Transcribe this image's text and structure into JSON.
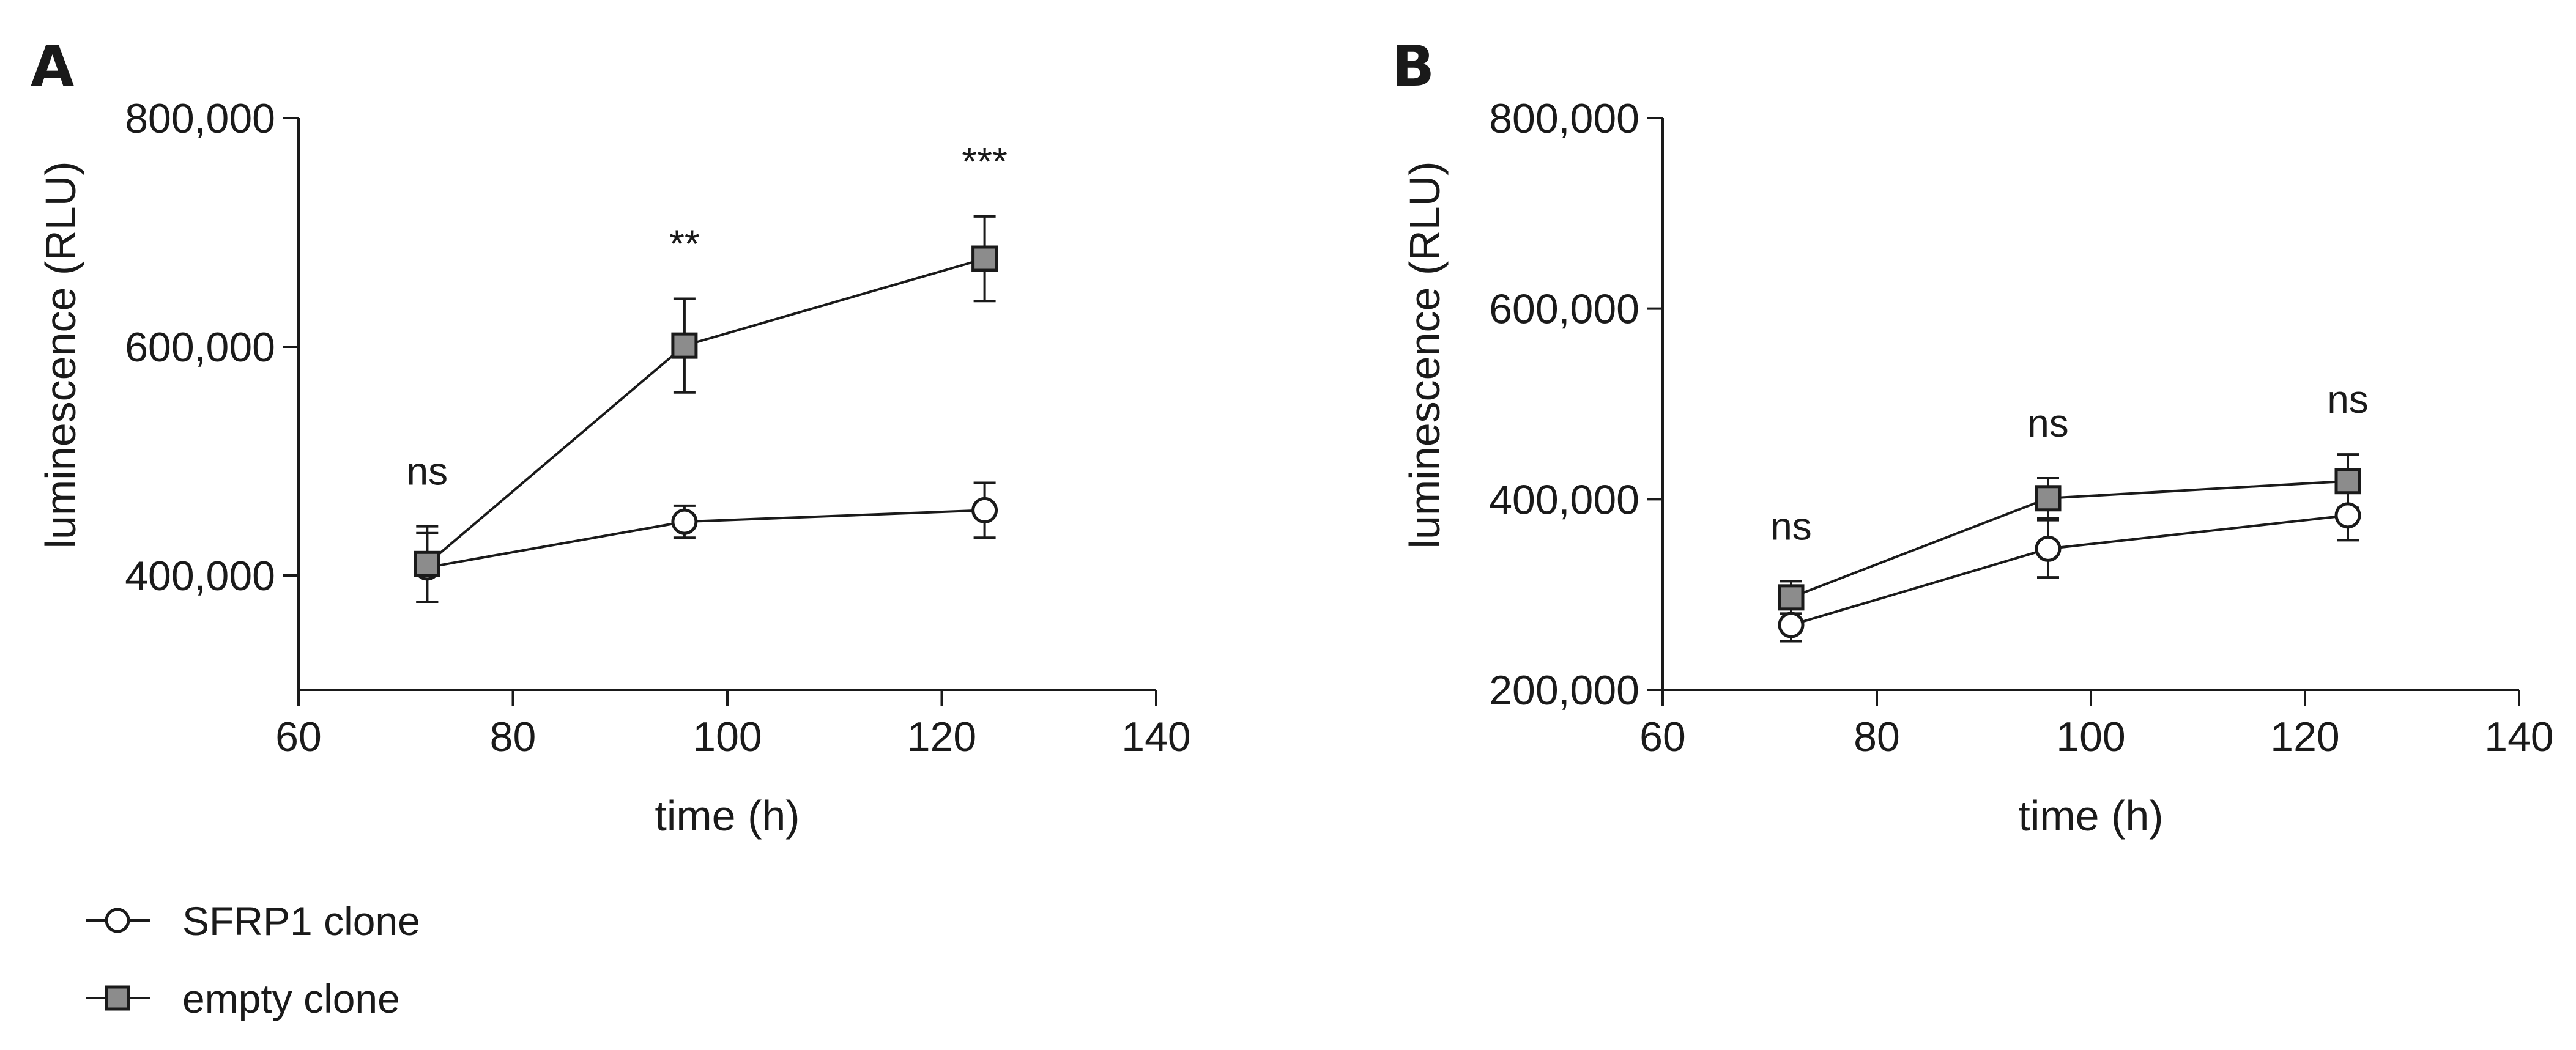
{
  "legend": {
    "items": [
      {
        "label": "SFRP1 clone",
        "marker": "circle"
      },
      {
        "label": "empty clone",
        "marker": "square"
      }
    ]
  },
  "colors": {
    "axis": "#1a1a1a",
    "sfrp1_fill": "#ffffff",
    "empty_fill": "#8c8c8c"
  },
  "chart_data": [
    {
      "panel": "A",
      "type": "line",
      "xlabel": "time (h)",
      "ylabel": "luminescence (RLU)",
      "xlim": [
        60,
        140
      ],
      "ylim": [
        300000,
        800000
      ],
      "xticks": [
        60,
        80,
        100,
        120,
        140
      ],
      "xtick_labels": [
        "60",
        "80",
        "100",
        "120",
        "140"
      ],
      "yticks": [
        400000,
        600000,
        800000
      ],
      "ytick_labels": [
        "400,000",
        "600,000",
        "800,000"
      ],
      "x": [
        72,
        96,
        124
      ],
      "series": [
        {
          "name": "SFRP1 clone",
          "marker": "circle",
          "values": [
            407000,
            447000,
            457000
          ],
          "errors": [
            30000,
            14000,
            24000
          ]
        },
        {
          "name": "empty clone",
          "marker": "square",
          "values": [
            410000,
            601000,
            677000
          ],
          "errors": [
            33000,
            41000,
            37000
          ]
        }
      ],
      "annotations": [
        {
          "x": 72,
          "text": "ns"
        },
        {
          "x": 96,
          "text": "**"
        },
        {
          "x": 124,
          "text": "***"
        }
      ]
    },
    {
      "panel": "B",
      "type": "line",
      "xlabel": "time (h)",
      "ylabel": "luminescence (RLU)",
      "xlim": [
        60,
        140
      ],
      "ylim": [
        200000,
        800000
      ],
      "xticks": [
        60,
        80,
        100,
        120,
        140
      ],
      "xtick_labels": [
        "60",
        "80",
        "100",
        "120",
        "140"
      ],
      "yticks": [
        200000,
        400000,
        600000,
        800000
      ],
      "ytick_labels": [
        "200,000",
        "400,000",
        "600,000",
        "800,000"
      ],
      "x": [
        72,
        96,
        124
      ],
      "series": [
        {
          "name": "SFRP1 clone",
          "marker": "circle",
          "values": [
            268000,
            348000,
            383000
          ],
          "errors": [
            17000,
            30000,
            26000
          ]
        },
        {
          "name": "empty clone",
          "marker": "square",
          "values": [
            297000,
            401000,
            419000
          ],
          "errors": [
            17000,
            21000,
            28000
          ]
        }
      ],
      "annotations": [
        {
          "x": 72,
          "text": "ns"
        },
        {
          "x": 96,
          "text": "ns"
        },
        {
          "x": 124,
          "text": "ns"
        }
      ]
    }
  ]
}
